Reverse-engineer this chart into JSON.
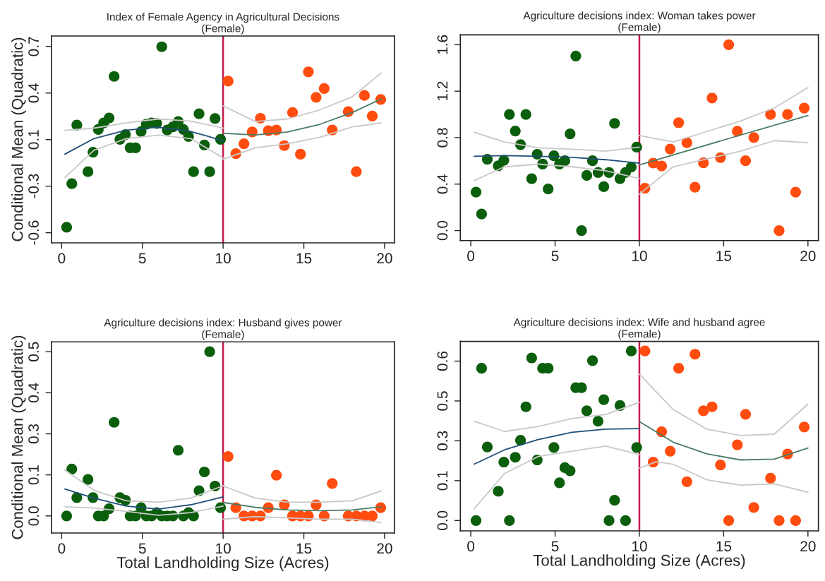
{
  "chart_data": [
    {
      "type": "scatter",
      "title": "Index of Female Agency in Agricultural Decisions\n(Female)",
      "ylabel": "Conditional Mean (Quadratic)",
      "xlim": [
        -0.63,
        20.61
      ],
      "ylim": [
        -0.671,
        0.773
      ],
      "xticks": [
        0,
        5,
        10,
        15,
        20
      ],
      "yticks": [
        {
          "value": -0.6,
          "label": "-0.6"
        },
        {
          "value": -0.275,
          "label": "-0.3"
        },
        {
          "value": 0.05,
          "label": "0.1"
        },
        {
          "value": 0.375,
          "label": "0.4"
        },
        {
          "value": 0.7,
          "label": "0.7"
        }
      ],
      "grid": false,
      "ref_lines": [
        {
          "axis": "x",
          "value": 10,
          "color": "#c8174a",
          "line_style": "solid"
        }
      ],
      "series": [
        {
          "marker": "circle",
          "color": "#0b5e0b",
          "x": [
            0.31,
            0.63,
            0.94,
            1.63,
            1.94,
            2.27,
            2.6,
            2.94,
            3.25,
            3.61,
            3.95,
            4.24,
            4.58,
            4.92,
            5.24,
            5.57,
            5.89,
            6.2,
            6.54,
            6.89,
            7.22,
            7.54,
            7.86,
            8.17,
            8.51,
            8.84,
            9.17,
            9.5,
            9.84
          ],
          "values": [
            -0.562,
            -0.258,
            0.152,
            -0.174,
            -0.038,
            0.121,
            0.166,
            0.201,
            0.491,
            0.052,
            0.085,
            -0.007,
            -0.007,
            0.106,
            0.157,
            0.166,
            0.163,
            0.698,
            0.117,
            0.139,
            0.176,
            0.121,
            0.072,
            -0.174,
            0.23,
            0.012,
            -0.174,
            0.197,
            0.052
          ]
        },
        {
          "marker": "circle",
          "color": "#ff4c0f",
          "x": [
            10.31,
            10.79,
            11.29,
            11.8,
            12.31,
            12.8,
            13.3,
            13.79,
            14.3,
            14.79,
            15.28,
            15.76,
            16.26,
            16.76,
            17.75,
            18.25,
            18.75,
            19.24,
            19.76
          ],
          "values": [
            0.458,
            -0.048,
            0.021,
            0.103,
            0.199,
            0.112,
            0.117,
            0.008,
            0.239,
            -0.052,
            0.523,
            0.345,
            0.407,
            0.117,
            0.245,
            -0.174,
            0.358,
            0.214,
            0.33
          ]
        },
        {
          "type": "line",
          "color": "#c8c8c8",
          "x": [
            0.2,
            2,
            4,
            6,
            8,
            10
          ],
          "values": [
            0.115,
            0.13,
            0.166,
            0.194,
            0.179,
            0.13
          ]
        },
        {
          "type": "line",
          "color": "#c8c8c8",
          "x": [
            0.2,
            2,
            4,
            6,
            8,
            10
          ],
          "values": [
            -0.216,
            -0.025,
            0.057,
            0.081,
            0.057,
            -0.079
          ]
        },
        {
          "type": "line",
          "color": "#1f4e79",
          "x": [
            0.2,
            2,
            3.95,
            5.9,
            7.8,
            9,
            10
          ],
          "values": [
            -0.052,
            0.057,
            0.115,
            0.137,
            0.112,
            0.075,
            0.039
          ]
        },
        {
          "type": "line",
          "color": "#c8c8c8",
          "x": [
            10,
            12,
            14,
            16,
            18,
            19.8
          ],
          "values": [
            0.285,
            0.176,
            0.194,
            0.258,
            0.349,
            0.516
          ]
        },
        {
          "type": "line",
          "color": "#c8c8c8",
          "x": [
            10,
            12,
            14,
            16,
            18,
            19.8
          ],
          "values": [
            -0.088,
            -0.007,
            0.021,
            0.066,
            0.139,
            0.166
          ]
        },
        {
          "type": "line",
          "color": "#4a7c63",
          "x": [
            10,
            12,
            14,
            16,
            18,
            19.8
          ],
          "values": [
            0.094,
            0.083,
            0.103,
            0.157,
            0.239,
            0.334
          ]
        }
      ]
    },
    {
      "type": "scatter",
      "title": "Agriculture decisions index: Woman takes power\n(Female)",
      "xlim": [
        -0.62,
        20.62
      ],
      "ylim": [
        -0.086,
        1.685
      ],
      "xticks": [
        0,
        5,
        10,
        15,
        20
      ],
      "yticks": [
        {
          "value": 0,
          "label": "0.0"
        },
        {
          "value": 0.4,
          "label": "0.4"
        },
        {
          "value": 0.8,
          "label": "0.8"
        },
        {
          "value": 1.2,
          "label": "1.2"
        },
        {
          "value": 1.6,
          "label": "1.6"
        }
      ],
      "grid": false,
      "ref_lines": [
        {
          "axis": "x",
          "value": 10,
          "color": "#c8174a",
          "line_style": "solid"
        }
      ],
      "series": [
        {
          "marker": "circle",
          "color": "#0b5e0b",
          "x": [
            0.31,
            0.64,
            0.98,
            1.63,
            1.96,
            2.29,
            2.64,
            2.95,
            3.27,
            3.61,
            3.94,
            4.26,
            4.59,
            4.93,
            5.26,
            5.58,
            5.89,
            6.23,
            6.57,
            6.88,
            7.22,
            7.55,
            7.89,
            8.2,
            8.53,
            8.85,
            9.18,
            9.52,
            9.84
          ],
          "values": [
            0.331,
            0.142,
            0.614,
            0.558,
            0.605,
            1.0,
            0.857,
            0.74,
            1.0,
            0.446,
            0.657,
            0.572,
            0.358,
            0.644,
            0.572,
            0.601,
            0.833,
            1.503,
            0.0,
            0.475,
            0.601,
            0.5,
            0.378,
            0.5,
            0.923,
            0.446,
            0.5,
            0.547,
            0.718
          ]
        },
        {
          "marker": "circle",
          "color": "#ff4c0f",
          "x": [
            10.33,
            10.82,
            11.32,
            11.83,
            12.33,
            12.82,
            13.3,
            13.8,
            14.31,
            14.81,
            15.3,
            15.81,
            16.3,
            16.79,
            17.78,
            18.29,
            18.79,
            19.27,
            19.78
          ],
          "values": [
            0.365,
            0.581,
            0.556,
            0.702,
            0.929,
            0.756,
            0.374,
            0.583,
            1.141,
            0.628,
            1.6,
            0.855,
            0.601,
            0.801,
            1.0,
            0.0,
            1.0,
            0.331,
            1.055
          ]
        },
        {
          "type": "line",
          "color": "#c8c8c8",
          "x": [
            0.2,
            2,
            4,
            6,
            8,
            10
          ],
          "values": [
            0.846,
            0.763,
            0.713,
            0.7,
            0.684,
            0.718
          ]
        },
        {
          "type": "line",
          "color": "#c8c8c8",
          "x": [
            0.2,
            2,
            4,
            6,
            8,
            10
          ],
          "values": [
            0.43,
            0.549,
            0.572,
            0.549,
            0.515,
            0.448
          ]
        },
        {
          "type": "line",
          "color": "#1f4e79",
          "x": [
            0.2,
            2,
            4,
            6,
            8,
            10
          ],
          "values": [
            0.64,
            0.645,
            0.64,
            0.63,
            0.61,
            0.58
          ]
        },
        {
          "type": "line",
          "color": "#c8c8c8",
          "x": [
            10,
            12,
            14,
            16,
            18,
            20
          ],
          "values": [
            0.819,
            0.763,
            0.853,
            0.943,
            1.055,
            1.231
          ]
        },
        {
          "type": "line",
          "color": "#c8c8c8",
          "x": [
            10,
            12,
            14,
            16,
            18,
            20
          ],
          "values": [
            0.313,
            0.549,
            0.616,
            0.684,
            0.774,
            0.756
          ]
        },
        {
          "type": "line",
          "color": "#4a7c63",
          "x": [
            10,
            15,
            20
          ],
          "values": [
            0.565,
            0.78,
            0.99
          ]
        }
      ]
    },
    {
      "type": "scatter",
      "title": "Agriculture decisions index: Husband gives power\n(Female)",
      "xlabel": "Total Landholding Size (Acres)",
      "ylabel": "Conditional Mean (Quadratic)",
      "xlim": [
        -0.63,
        20.61
      ],
      "ylim": [
        -0.052,
        0.53
      ],
      "xticks": [
        0,
        5,
        10,
        15,
        20
      ],
      "yticks": [
        {
          "value": 0,
          "label": "0.0"
        },
        {
          "value": 0.125,
          "label": "0.1"
        },
        {
          "value": 0.25,
          "label": "0.3"
        },
        {
          "value": 0.375,
          "label": "0.4"
        },
        {
          "value": 0.5,
          "label": "0.5"
        }
      ],
      "grid": false,
      "ref_lines": [
        {
          "axis": "x",
          "value": 10,
          "color": "#c8174a",
          "line_style": "solid"
        }
      ],
      "series": [
        {
          "marker": "circle",
          "color": "#0b5e0b",
          "x": [
            0.31,
            0.63,
            0.94,
            1.63,
            1.94,
            2.27,
            2.6,
            2.94,
            3.25,
            3.61,
            3.95,
            4.24,
            4.58,
            4.92,
            5.24,
            5.57,
            5.89,
            6.2,
            6.54,
            6.89,
            7.22,
            7.54,
            7.86,
            8.17,
            8.51,
            8.84,
            9.17,
            9.5,
            9.84
          ],
          "values": [
            0,
            0.143,
            0.056,
            0.111,
            0.056,
            0,
            0,
            0.022,
            0.285,
            0.056,
            0.048,
            0,
            0,
            0.025,
            0,
            0,
            0.01,
            0,
            0,
            0,
            0.2,
            0,
            0.01,
            0,
            0.077,
            0.134,
            0.5,
            0.091,
            0.025
          ]
        },
        {
          "marker": "circle",
          "color": "#ff4c0f",
          "x": [
            10.31,
            10.79,
            11.29,
            11.8,
            12.31,
            12.8,
            13.3,
            13.79,
            14.3,
            14.79,
            15.28,
            15.76,
            16.26,
            16.76,
            17.75,
            18.25,
            18.75,
            19.24,
            19.76
          ],
          "values": [
            0.181,
            0.025,
            0,
            0,
            0,
            0.025,
            0.124,
            0.034,
            0,
            0,
            0,
            0.034,
            0,
            0.099,
            0,
            0,
            0,
            0,
            0.025
          ]
        },
        {
          "type": "line",
          "color": "#c8c8c8",
          "x": [
            0.2,
            2,
            4,
            6,
            8,
            10
          ],
          "values": [
            0.14,
            0.078,
            0.046,
            0.042,
            0.054,
            0.092
          ]
        },
        {
          "type": "line",
          "color": "#c8c8c8",
          "x": [
            0.2,
            2,
            4,
            6,
            8,
            10
          ],
          "values": [
            0.028,
            0.024,
            0.014,
            0.002,
            0.01,
            0.03
          ]
        },
        {
          "type": "line",
          "color": "#1f4e79",
          "x": [
            0.2,
            2,
            4,
            6,
            8,
            10
          ],
          "values": [
            0.082,
            0.054,
            0.03,
            0.021,
            0.034,
            0.058
          ]
        },
        {
          "type": "line",
          "color": "#c8c8c8",
          "x": [
            10,
            12,
            14,
            16,
            18,
            19.8
          ],
          "values": [
            0.091,
            0.054,
            0.042,
            0.042,
            0.046,
            0.076
          ]
        },
        {
          "type": "line",
          "color": "#c8c8c8",
          "x": [
            10,
            12,
            14,
            16,
            18,
            19.8
          ],
          "values": [
            -0.01,
            -0.002,
            -0.006,
            -0.01,
            -0.01,
            -0.02
          ]
        },
        {
          "type": "line",
          "color": "#4a7c63",
          "x": [
            10,
            12,
            14,
            16,
            18,
            19.8
          ],
          "values": [
            0.041,
            0.026,
            0.018,
            0.016,
            0.018,
            0.028
          ]
        }
      ]
    },
    {
      "type": "scatter",
      "title": "Agriculture decisions index: Wife and husband agree\n(Female)",
      "xlabel": "Total Landholding Size (Acres)",
      "xlim": [
        -0.62,
        20.62
      ],
      "ylim": [
        -0.039,
        0.674
      ],
      "xticks": [
        0,
        5,
        10,
        15,
        20
      ],
      "yticks": [
        {
          "value": 0,
          "label": "0.0"
        },
        {
          "value": 0.15,
          "label": "0.1"
        },
        {
          "value": 0.3,
          "label": "0.3"
        },
        {
          "value": 0.45,
          "label": "0.5"
        },
        {
          "value": 0.6,
          "label": "0.6"
        }
      ],
      "grid": false,
      "ref_lines": [
        {
          "axis": "x",
          "value": 10,
          "color": "#c8174a",
          "line_style": "solid"
        }
      ],
      "series": [
        {
          "marker": "circle",
          "color": "#0b5e0b",
          "x": [
            0.31,
            0.64,
            0.98,
            1.63,
            1.96,
            2.29,
            2.64,
            2.95,
            3.27,
            3.61,
            3.94,
            4.26,
            4.59,
            4.93,
            5.26,
            5.58,
            5.89,
            6.23,
            6.57,
            6.88,
            7.22,
            7.55,
            7.89,
            8.2,
            8.53,
            8.85,
            9.18,
            9.52,
            9.84
          ],
          "values": [
            0,
            0.573,
            0.277,
            0.11,
            0.22,
            0,
            0.238,
            0.302,
            0.428,
            0.612,
            0.228,
            0.573,
            0.573,
            0.275,
            0.142,
            0.199,
            0.187,
            0.5,
            0.5,
            0.413,
            0.602,
            0.374,
            0.455,
            0,
            0.076,
            0.433,
            0,
            0.638,
            0.275
          ]
        },
        {
          "marker": "circle",
          "color": "#ff4c0f",
          "x": [
            10.33,
            10.82,
            11.32,
            11.83,
            12.33,
            12.82,
            13.3,
            13.8,
            14.31,
            14.81,
            15.3,
            15.81,
            16.3,
            16.79,
            17.78,
            18.29,
            18.79,
            19.27,
            19.78
          ],
          "values": [
            0.638,
            0.22,
            0.334,
            0.261,
            0.573,
            0.146,
            0.626,
            0.413,
            0.428,
            0.209,
            0,
            0.285,
            0.4,
            0.049,
            0.159,
            0,
            0.25,
            0,
            0.352
          ]
        },
        {
          "type": "line",
          "color": "#c8c8c8",
          "x": [
            0.2,
            2,
            4,
            6,
            8,
            10
          ],
          "values": [
            0.374,
            0.335,
            0.354,
            0.384,
            0.399,
            0.445
          ]
        },
        {
          "type": "line",
          "color": "#c8c8c8",
          "x": [
            0.2,
            2,
            4,
            6,
            8,
            10
          ],
          "values": [
            0.044,
            0.177,
            0.241,
            0.261,
            0.28,
            0.248
          ]
        },
        {
          "type": "line",
          "color": "#1f4e79",
          "x": [
            0.2,
            2,
            4,
            6,
            8,
            10
          ],
          "values": [
            0.212,
            0.266,
            0.305,
            0.332,
            0.344,
            0.346
          ]
        },
        {
          "type": "line",
          "color": "#c8c8c8",
          "x": [
            10,
            12,
            14,
            16,
            18,
            20
          ],
          "values": [
            0.551,
            0.418,
            0.344,
            0.32,
            0.325,
            0.438
          ]
        },
        {
          "type": "line",
          "color": "#c8c8c8",
          "x": [
            10,
            11,
            12,
            14,
            16,
            18,
            20
          ],
          "values": [
            0.197,
            0.221,
            0.212,
            0.153,
            0.133,
            0.138,
            0.106
          ]
        },
        {
          "type": "line",
          "color": "#4a7c63",
          "x": [
            10,
            12,
            14,
            16,
            18,
            20
          ],
          "values": [
            0.372,
            0.295,
            0.251,
            0.228,
            0.231,
            0.273
          ]
        }
      ]
    }
  ]
}
